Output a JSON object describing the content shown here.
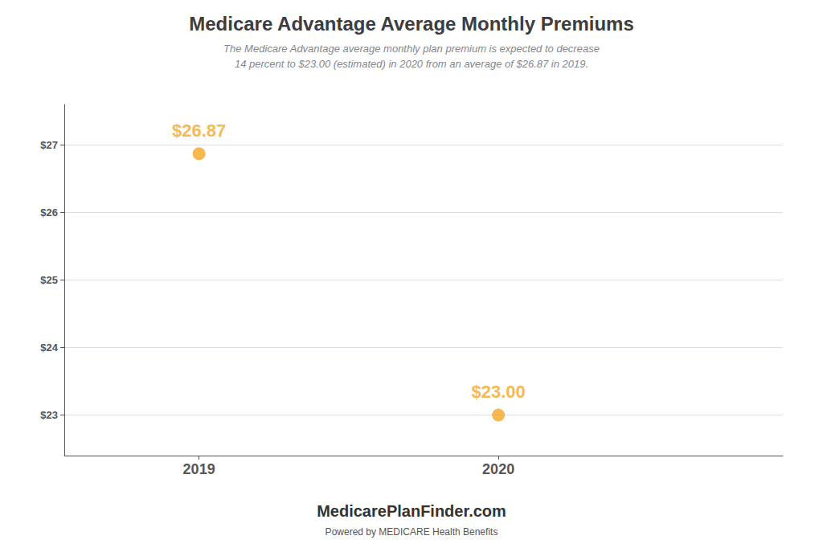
{
  "chart_data": {
    "type": "scatter",
    "title": "Medicare Advantage Average Monthly Premiums",
    "subtitle": "The Medicare Advantage average monthly plan premium is expected to decrease\n14 percent to $23.00 (estimated) in 2020 from an average of $26.87 in 2019.",
    "x": [
      2019,
      2020
    ],
    "values": [
      26.87,
      23.0
    ],
    "value_labels": [
      "$26.87",
      "$23.00"
    ],
    "data_labels": true,
    "color": "#f5a623",
    "xlim": [
      2018.55,
      2020.95
    ],
    "xticks": [
      2019,
      2020
    ],
    "ylim": [
      22.4,
      27.6
    ],
    "yticks": [
      {
        "value": 23,
        "label": "$23"
      },
      {
        "value": 24,
        "label": "$24"
      },
      {
        "value": 25,
        "label": "$25"
      },
      {
        "value": 26,
        "label": "$26"
      },
      {
        "value": 27,
        "label": "$27"
      }
    ],
    "grid": true,
    "annotations": [
      "MedicarePlanFinder.com",
      "Powered by MEDICARE Health Benefits"
    ]
  }
}
